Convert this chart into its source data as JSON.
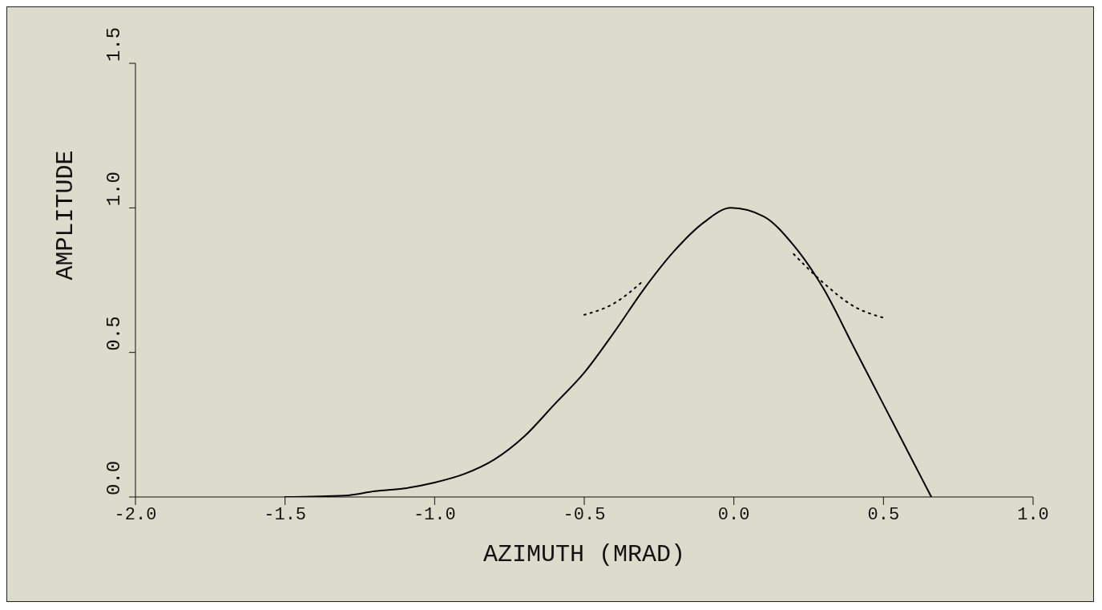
{
  "chart_data": {
    "type": "line",
    "xlabel": "AZIMUTH (MRAD)",
    "ylabel": "AMPLITUDE",
    "xlim": [
      -2,
      1
    ],
    "ylim": [
      0,
      1.5
    ],
    "xticks": [
      {
        "value": -2,
        "label": "-2.0"
      },
      {
        "value": -1.5,
        "label": "-1.5"
      },
      {
        "value": -1,
        "label": "-1.0"
      },
      {
        "value": -0.5,
        "label": "-0.5"
      },
      {
        "value": 0,
        "label": "0.0"
      },
      {
        "value": 0.5,
        "label": "0.5"
      },
      {
        "value": 1,
        "label": "1.0"
      }
    ],
    "yticks": [
      {
        "value": 0,
        "label": "0.0"
      },
      {
        "value": 0.5,
        "label": "0.5"
      },
      {
        "value": 1,
        "label": "1.0"
      },
      {
        "value": 1.5,
        "label": "1.5"
      }
    ],
    "grid": false,
    "legend": false,
    "series": [
      {
        "color": "#000000",
        "line_style": "solid",
        "x": [
          -1.5,
          -1.3,
          -1.2,
          -1.1,
          -1.0,
          -0.9,
          -0.8,
          -0.7,
          -0.6,
          -0.5,
          -0.4,
          -0.3,
          -0.2,
          -0.1,
          -0.01,
          0.1,
          0.2,
          0.3,
          0.4,
          0.5,
          0.6,
          0.66
        ],
        "values": [
          0,
          0.005,
          0.02,
          0.03,
          0.05,
          0.08,
          0.13,
          0.21,
          0.32,
          0.43,
          0.57,
          0.72,
          0.85,
          0.95,
          1.0,
          0.97,
          0.87,
          0.72,
          0.52,
          0.32,
          0.12,
          0
        ]
      },
      {
        "color": "#000000",
        "line_style": "dotted",
        "x": [
          -0.5,
          -0.4,
          -0.3,
          0,
          0.2,
          0.3,
          0.4,
          0.5
        ],
        "values": [
          0.63,
          0.67,
          0.75,
          null,
          0.84,
          0.74,
          0.66,
          0.62
        ]
      }
    ]
  }
}
